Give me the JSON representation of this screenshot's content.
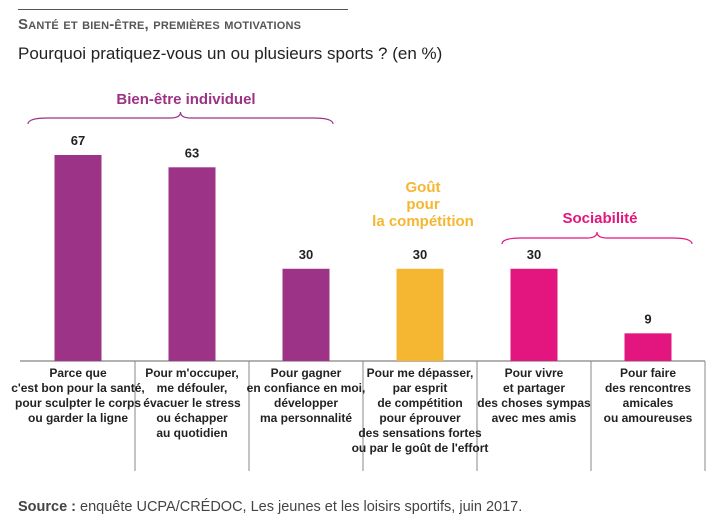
{
  "header": {
    "heading": "Santé et bien-être, premières motivations",
    "subtitle": "Pourquoi pratiquez-vous un ou plusieurs sports ? (en %)"
  },
  "source": {
    "label": "Source :",
    "text": " enquête UCPA/CRÉDOC, Les jeunes et les loisirs sportifs, juin 2017."
  },
  "colors": {
    "purple": "#9c3386",
    "yellow": "#f5b731",
    "pink": "#e3157e"
  },
  "chart_data": {
    "type": "bar",
    "title": "Pourquoi pratiquez-vous un ou plusieurs sports ? (en %)",
    "ylim": [
      0,
      67
    ],
    "categories": [
      [
        "Parce que",
        "c'est bon pour la santé,",
        "pour sculpter le corps",
        "ou garder la ligne"
      ],
      [
        "Pour m'occuper,",
        "me défouler,",
        "évacuer le stress",
        "ou échapper",
        "au quotidien"
      ],
      [
        "Pour gagner",
        "en confiance en moi,",
        "développer",
        "ma personnalité"
      ],
      [
        "Pour me dépasser,",
        "par esprit",
        "de compétition",
        "pour éprouver",
        "des sensations fortes",
        "ou par le goût de l'effort"
      ],
      [
        "Pour vivre",
        "et partager",
        "des choses sympas",
        "avec mes amis"
      ],
      [
        "Pour faire",
        "des rencontres",
        "amicales",
        "ou amoureuses"
      ]
    ],
    "values": [
      67,
      63,
      30,
      30,
      30,
      9
    ],
    "bar_groups": [
      "purple",
      "purple",
      "purple",
      "yellow",
      "pink",
      "pink"
    ],
    "groups": [
      {
        "label": [
          "Bien-être individuel"
        ],
        "color": "purple",
        "bars": [
          0,
          1,
          2
        ]
      },
      {
        "label": [
          "Goût",
          "pour",
          "la compétition"
        ],
        "color": "yellow",
        "bars": [
          3
        ]
      },
      {
        "label": [
          "Sociabilité"
        ],
        "color": "pink",
        "bars": [
          4,
          5
        ]
      }
    ]
  }
}
